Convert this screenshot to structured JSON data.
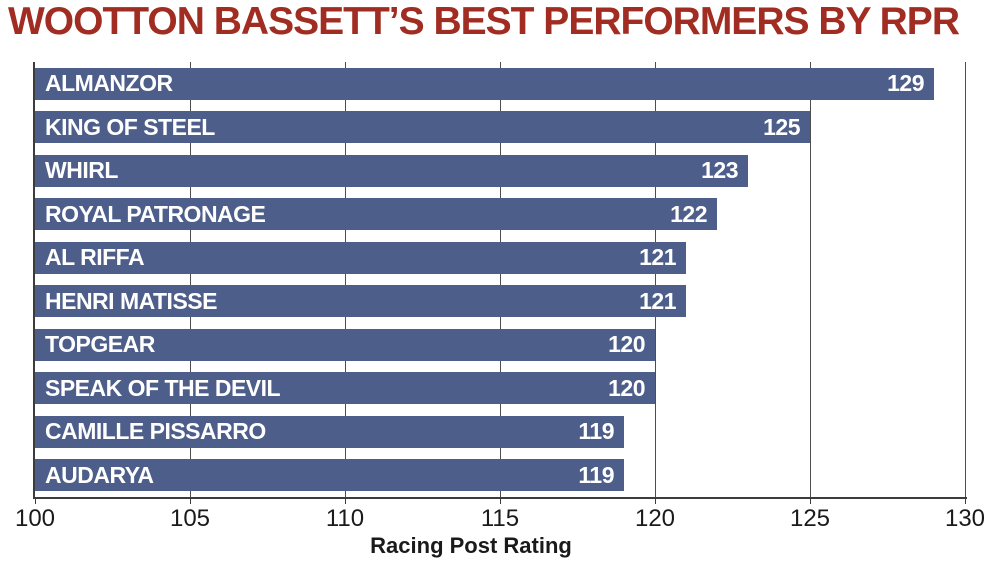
{
  "chart_data": {
    "type": "bar",
    "orientation": "horizontal",
    "title": "WOOTTON BASSETT’S BEST PERFORMERS BY RPR",
    "categories": [
      "ALMANZOR",
      "KING OF STEEL",
      "WHIRL",
      "ROYAL PATRONAGE",
      "AL RIFFA",
      "HENRI MATISSE",
      "TOPGEAR",
      "SPEAK OF THE DEVIL",
      "CAMILLE PISSARRO",
      "AUDARYA"
    ],
    "values": [
      129,
      125,
      123,
      122,
      121,
      121,
      120,
      120,
      119,
      119
    ],
    "xlabel": "Racing Post Rating",
    "ylabel": "",
    "xlim": [
      100,
      130
    ],
    "xticks": [
      100,
      105,
      110,
      115,
      120,
      125,
      130
    ],
    "grid": true,
    "legend": false,
    "colors": {
      "bar": "#4D5E8B",
      "bar_text": "#FFFFFF",
      "title": "#A12C21",
      "axis": "#3C3C3C",
      "gridline": "#4D4D4D",
      "tick_text": "#1A1A1A"
    }
  }
}
